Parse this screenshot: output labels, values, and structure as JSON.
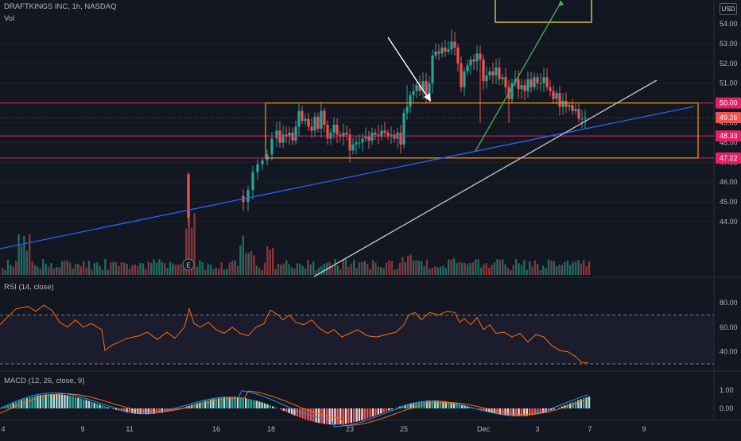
{
  "header": {
    "symbol_line": "DRAFTKINGS INC, 1h, NASDAQ",
    "vol_label": "Vol",
    "currency": "USD"
  },
  "colors": {
    "background": "#131722",
    "up": "#26a69a",
    "down": "#ef5350",
    "up_volume": "#1f6b63",
    "down_volume": "#8b3437",
    "horizontal_lines": "#e91e63",
    "box": "#ff9800",
    "small_box": "#ffeb3b",
    "trendline_blue": "#2962ff",
    "trendline_white": "#c8c8c8",
    "trendline_green": "#4caf50",
    "rsi_line": "#ff6d00",
    "macd_line": "#2196f3",
    "signal_line": "#ff6d00"
  },
  "chart_data": {
    "type": "candlestick",
    "title": "DRAFTKINGS INC, 1h, NASDAQ",
    "x_ticks": [
      "4",
      "9",
      "11",
      "16",
      "18",
      "23",
      "25",
      "Dec",
      "3",
      "7",
      "9"
    ],
    "price_axis": {
      "ticks": [
        44.0,
        45.0,
        46.0,
        47.0,
        48.0,
        49.0,
        50.0,
        51.0,
        52.0,
        53.0,
        54.0
      ],
      "range": [
        43.6,
        54.8
      ],
      "price_labels": [
        {
          "value": 50.0,
          "text": "50.00",
          "color": "#e91e63"
        },
        {
          "value": 49.26,
          "text": "49.26",
          "color": "#ef5350"
        },
        {
          "value": 48.33,
          "text": "48.33",
          "color": "#e91e63"
        },
        {
          "value": 47.22,
          "text": "47.22",
          "color": "#e91e63"
        }
      ]
    },
    "horizontal_levels": [
      50.0,
      48.33,
      47.22
    ],
    "range_box": {
      "top": 50.0,
      "bottom": 47.22
    },
    "key_prices": {
      "start": 45.8,
      "breakout_low": 45.2,
      "pre_gap": 48.1,
      "peak": 53.7,
      "last": 49.26
    },
    "rsi": {
      "label": "RSI (14, close)",
      "ticks": [
        40.0,
        60.0,
        80.0
      ],
      "bands": [
        70,
        30
      ],
      "range": [
        25,
        90
      ]
    },
    "macd": {
      "label": "MACD (12, 26, close, 9)",
      "ticks": [
        0.0,
        1.0
      ],
      "tick_labels": [
        "0.00",
        "1.00"
      ],
      "range": [
        -0.45,
        1.6
      ]
    },
    "events": [
      {
        "label": "E"
      }
    ]
  }
}
